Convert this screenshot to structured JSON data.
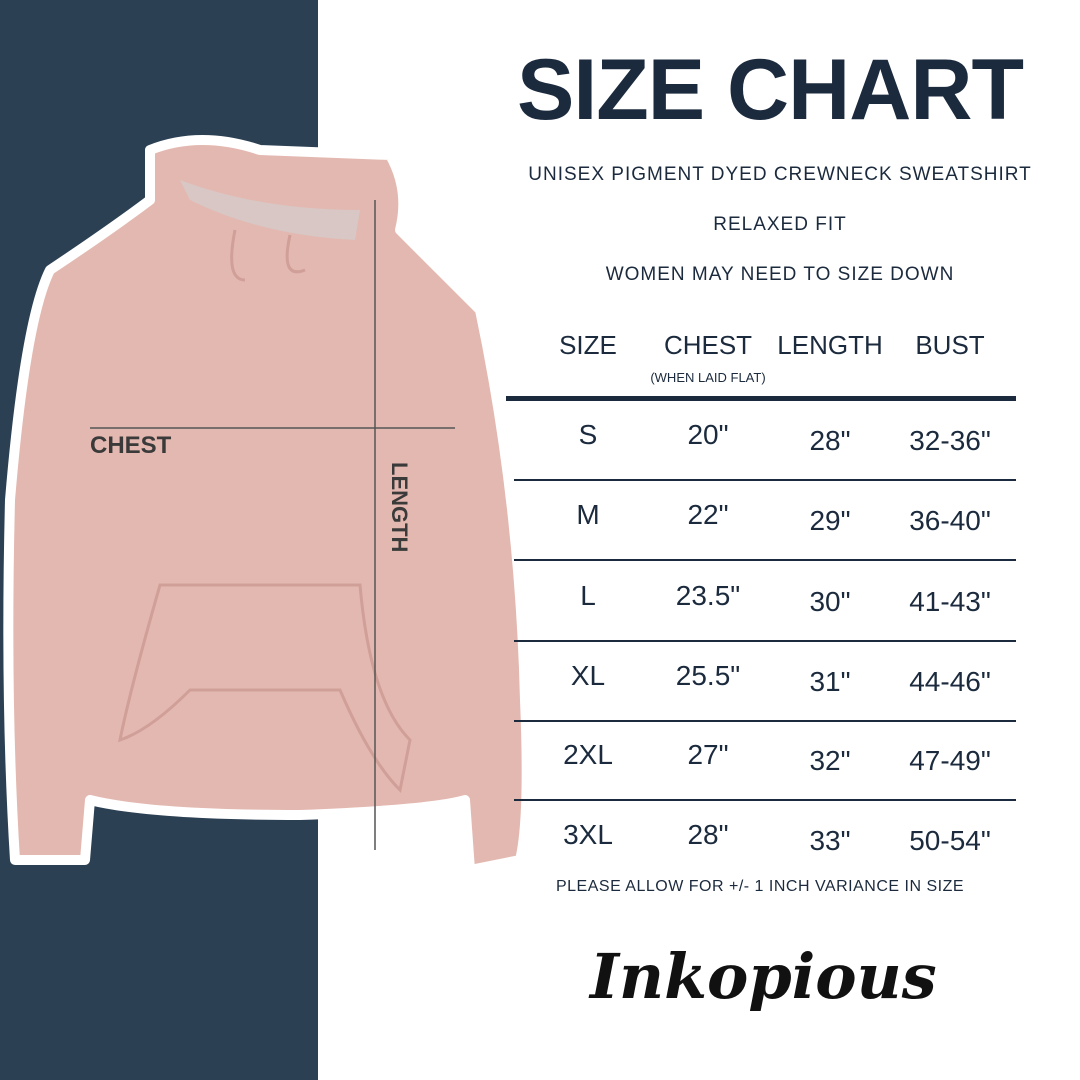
{
  "title": "SIZE CHART",
  "subtitle": "UNISEX PIGMENT DYED CREWNECK SWEATSHIRT",
  "fit": "RELAXED FIT",
  "advice": "WOMEN MAY NEED TO SIZE DOWN",
  "diagram": {
    "chest_label": "CHEST",
    "length_label": "LENGTH"
  },
  "table": {
    "headers": [
      "SIZE",
      "CHEST",
      "LENGTH",
      "BUST"
    ],
    "chest_note": "(WHEN LAID FLAT)",
    "rows": [
      [
        "S",
        "20\"",
        "28\"",
        "32-36\""
      ],
      [
        "M",
        "22\"",
        "29\"",
        "36-40\""
      ],
      [
        "L",
        "23.5\"",
        "30\"",
        "41-43\""
      ],
      [
        "XL",
        "25.5\"",
        "31\"",
        "44-46\""
      ],
      [
        "2XL",
        "27\"",
        "32\"",
        "47-49\""
      ],
      [
        "3XL",
        "28\"",
        "33\"",
        "50-54\""
      ]
    ]
  },
  "note": "PLEASE ALLOW FOR +/- 1 INCH VARIANCE IN SIZE",
  "brand": "Inkopious",
  "colors": {
    "panel": "#2c4054",
    "text": "#1b2a3d",
    "garment": "#e3b8b0"
  }
}
